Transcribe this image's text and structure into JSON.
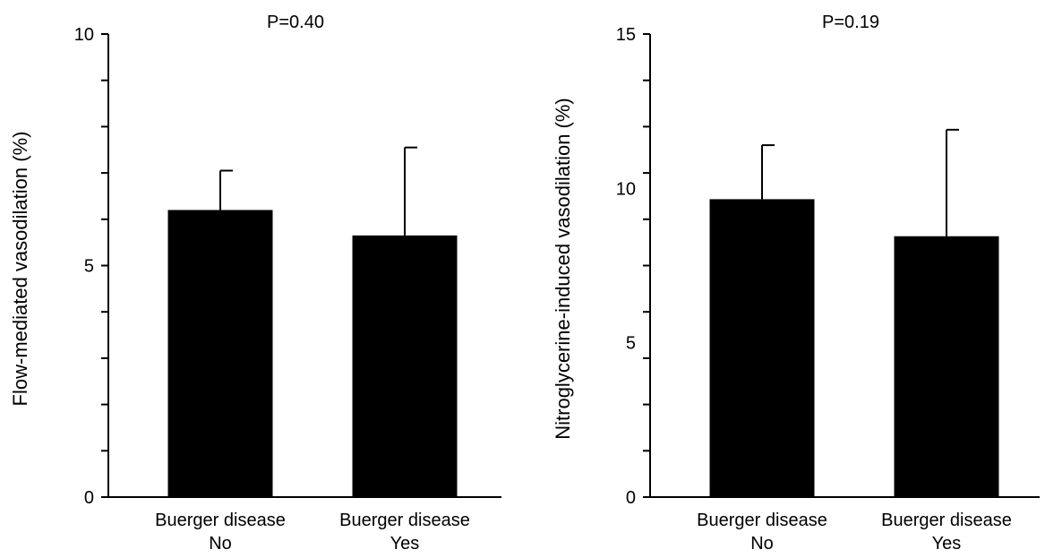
{
  "chart_data": [
    {
      "type": "bar",
      "title": "P=0.40",
      "ylabel": "Flow-mediated vasodilation (%)",
      "categories": [
        [
          "Buerger disease",
          "No"
        ],
        [
          "Buerger disease",
          "Yes"
        ]
      ],
      "values": [
        6.2,
        5.65
      ],
      "error_upper": [
        7.05,
        7.55
      ],
      "ylim": [
        0,
        10
      ],
      "yticks_labeled": [
        0,
        5,
        10
      ],
      "yticks_minor_step": 1,
      "bar_color": "#000000",
      "grid": false
    },
    {
      "type": "bar",
      "title": "P=0.19",
      "ylabel": "Nitroglycerine-induced vasodilation (%)",
      "categories": [
        [
          "Buerger disease",
          "No"
        ],
        [
          "Buerger disease",
          "Yes"
        ]
      ],
      "values": [
        9.65,
        8.45
      ],
      "error_upper": [
        11.4,
        11.9
      ],
      "ylim": [
        0,
        15
      ],
      "yticks_labeled": [
        0,
        5,
        10,
        15
      ],
      "yticks_minor_step": 1.5,
      "bar_color": "#000000",
      "grid": false
    }
  ]
}
